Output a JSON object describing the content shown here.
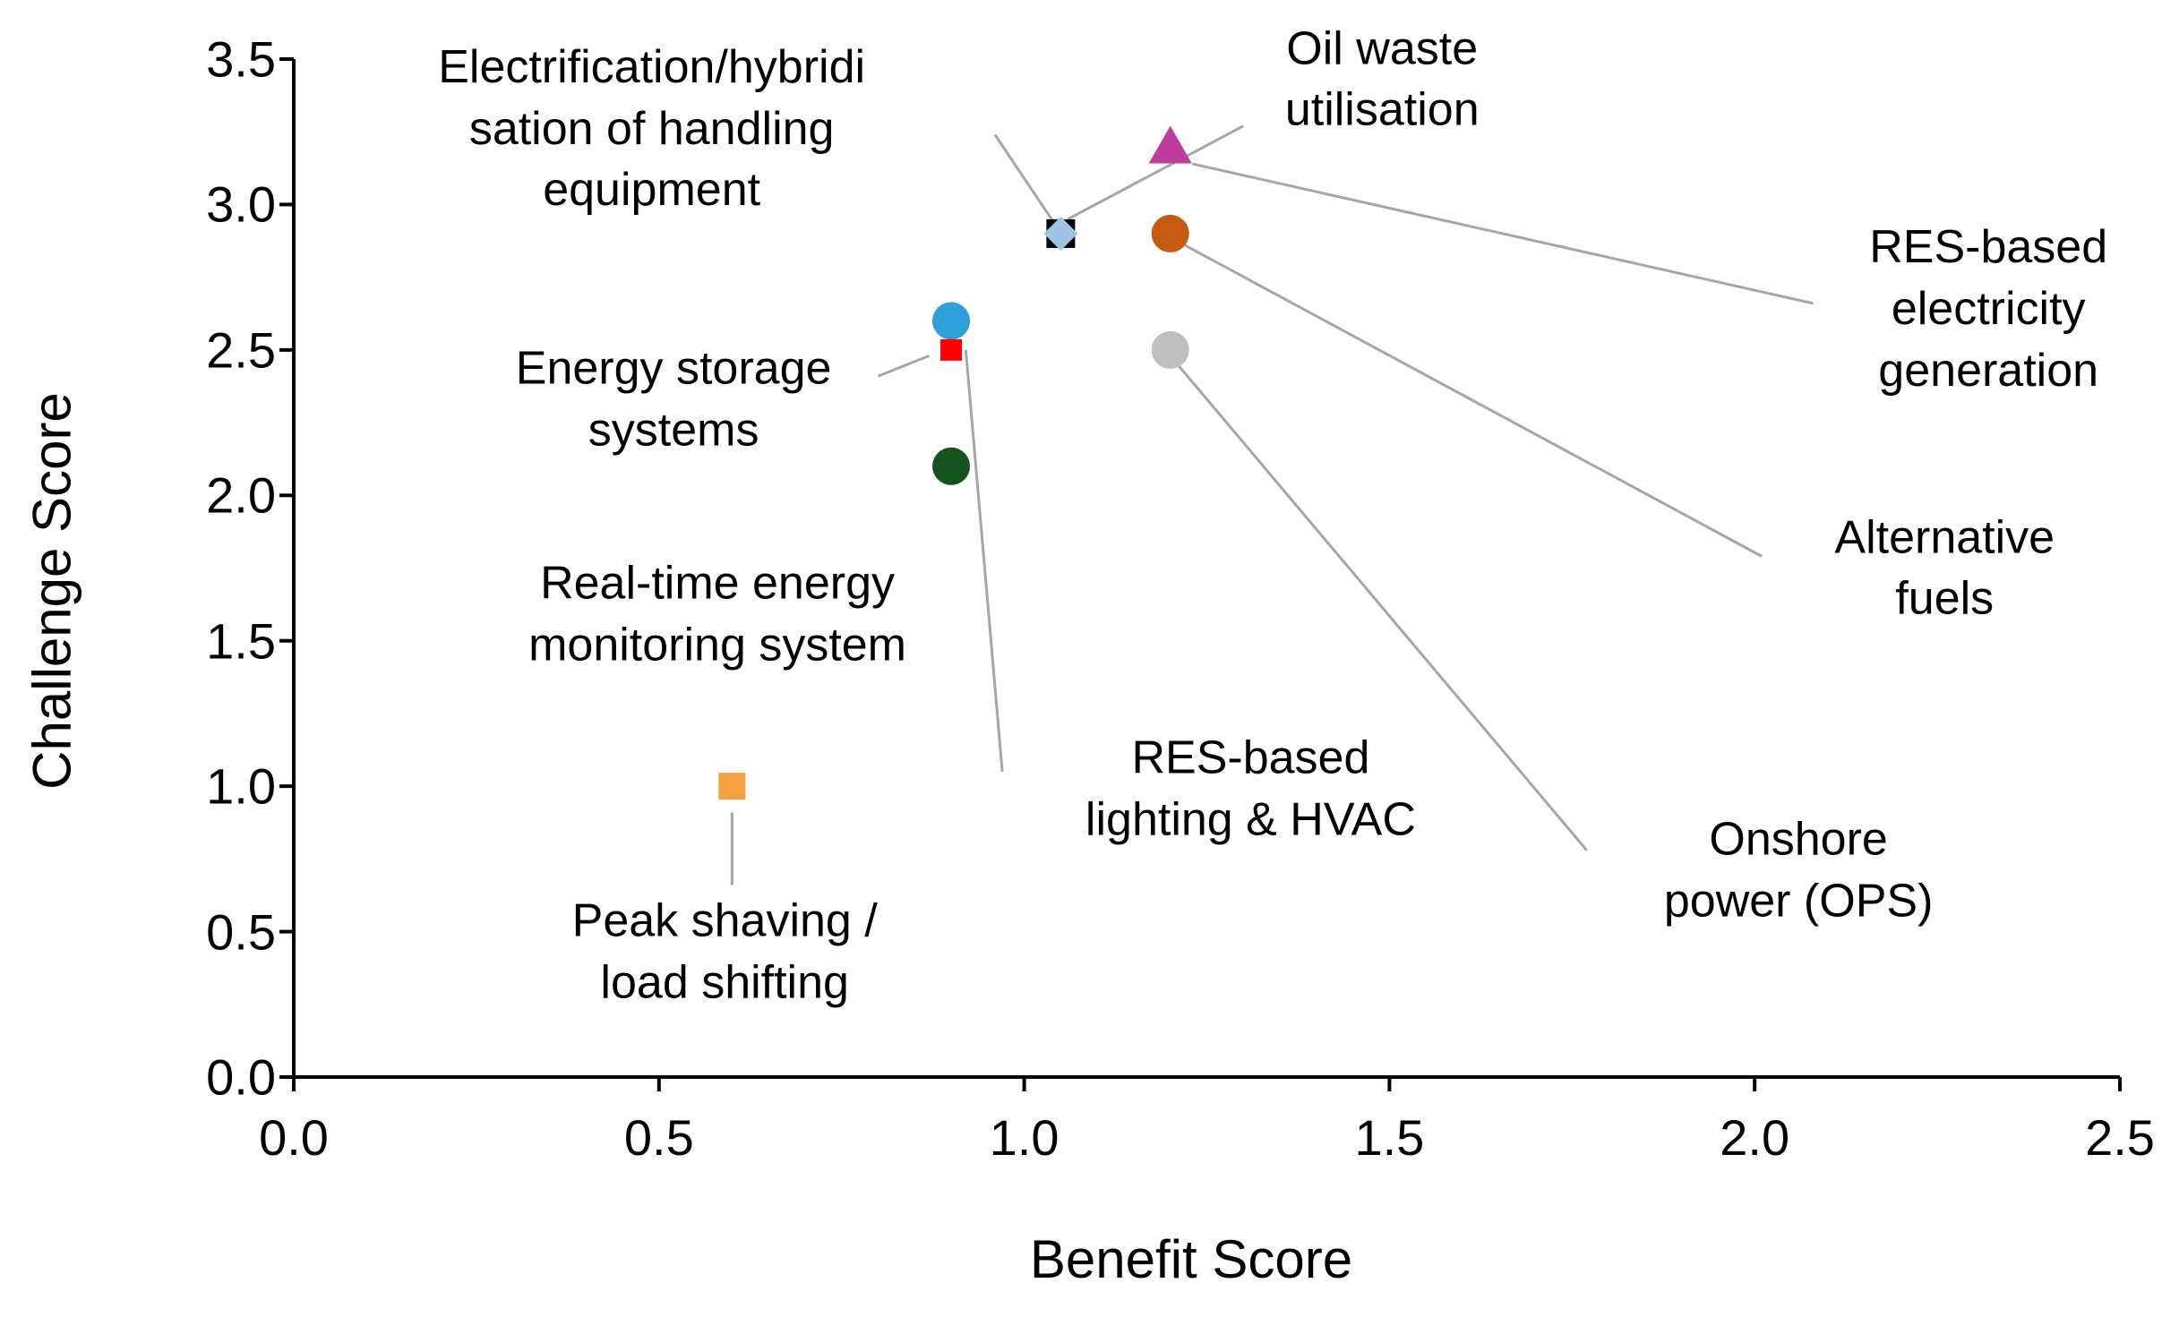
{
  "chart_data": {
    "type": "scatter",
    "title": "",
    "xlabel": "Benefit Score",
    "ylabel": "Challenge Score",
    "xlim": [
      0,
      2.5
    ],
    "ylim": [
      0,
      3.5
    ],
    "x_ticks": [
      "0.0",
      "0.5",
      "1.0",
      "1.5",
      "2.0",
      "2.5"
    ],
    "y_ticks": [
      "0.0",
      "0.5",
      "1.0",
      "1.5",
      "2.0",
      "2.5",
      "3.0",
      "3.5"
    ],
    "grid": false,
    "legend": false,
    "background": "#ffffff",
    "axis_color": "#000000",
    "text_color": "#000000",
    "leader_line_color": "#a6a6a6",
    "series": [
      {
        "id": "oil-waste-utilisation",
        "name": "Oil waste utilisation",
        "x": 1.05,
        "y": 2.9,
        "marker": "square",
        "color": "#000000",
        "size": 32,
        "label_lines": [
          "Oil waste",
          "utilisation"
        ],
        "label_x": 1.49,
        "label_y": 3.43,
        "leader": [
          [
            1.3,
            3.27
          ],
          [
            1.06,
            2.95
          ]
        ]
      },
      {
        "id": "electrification-hybridisation-handling-equipment",
        "name": "Electrification/hybridisation of handling equipment",
        "x": 1.05,
        "y": 2.9,
        "marker": "diamond",
        "color": "#9dc3e6",
        "size": 38,
        "label_lines": [
          "Electrification/hybridi",
          "sation of handling",
          "equipment"
        ],
        "label_x": 0.49,
        "label_y": 3.26,
        "leader": [
          [
            0.96,
            3.24
          ],
          [
            1.04,
            2.94
          ]
        ]
      },
      {
        "id": "res-electricity-generation",
        "name": "RES-based electricity generation",
        "x": 1.2,
        "y": 3.2,
        "marker": "triangle",
        "color": "#be3ca0",
        "size": 46,
        "label_lines": [
          "RES-based",
          "electricity",
          "generation"
        ],
        "label_x": 2.32,
        "label_y": 2.64,
        "leader": [
          [
            2.08,
            2.66
          ],
          [
            1.23,
            3.14
          ]
        ]
      },
      {
        "id": "alternative-fuels",
        "name": "Alternative fuels",
        "x": 1.2,
        "y": 2.9,
        "marker": "circle",
        "color": "#c55a11",
        "size": 42,
        "label_lines": [
          "Alternative",
          "fuels"
        ],
        "label_x": 2.26,
        "label_y": 1.75,
        "leader": [
          [
            2.01,
            1.79
          ],
          [
            1.22,
            2.86
          ]
        ]
      },
      {
        "id": "onshore-power-ops",
        "name": "Onshore power (OPS)",
        "x": 1.2,
        "y": 2.5,
        "marker": "circle",
        "color": "#bfbfbf",
        "size": 42,
        "label_lines": [
          "Onshore",
          "power (OPS)"
        ],
        "label_x": 2.06,
        "label_y": 0.71,
        "leader": [
          [
            1.77,
            0.78
          ],
          [
            1.21,
            2.45
          ]
        ]
      },
      {
        "id": "res-lighting-hvac",
        "name": "RES-based lighting & HVAC",
        "x": 0.9,
        "y": 2.6,
        "marker": "circle",
        "color": "#2e9fd9",
        "size": 42,
        "label_lines": [
          "RES-based",
          "lighting & HVAC"
        ],
        "label_x": 1.31,
        "label_y": 0.99,
        "leader": [
          [
            0.97,
            1.05
          ],
          [
            0.92,
            2.5
          ]
        ]
      },
      {
        "id": "energy-storage-systems",
        "name": "Energy storage systems",
        "x": 0.9,
        "y": 2.5,
        "marker": "square",
        "color": "#ff0000",
        "size": 24,
        "label_lines": [
          "Energy storage",
          "systems"
        ],
        "label_x": 0.52,
        "label_y": 2.33,
        "leader": [
          [
            0.8,
            2.41
          ],
          [
            0.87,
            2.48
          ]
        ]
      },
      {
        "id": "real-time-energy-monitoring",
        "name": "Real-time energy monitoring system",
        "x": 0.9,
        "y": 2.1,
        "marker": "circle",
        "color": "#14521e",
        "size": 42,
        "label_lines": [
          "Real-time energy",
          "monitoring system"
        ],
        "label_x": 0.58,
        "label_y": 1.59,
        "leader": null
      },
      {
        "id": "peak-shaving-load-shifting",
        "name": "Peak shaving / load shifting",
        "x": 0.6,
        "y": 1.0,
        "marker": "square",
        "color": "#f4a142",
        "size": 30,
        "label_lines": [
          "Peak shaving /",
          "load shifting"
        ],
        "label_x": 0.59,
        "label_y": 0.43,
        "leader": [
          [
            0.6,
            0.91
          ],
          [
            0.6,
            0.66
          ]
        ]
      }
    ]
  }
}
